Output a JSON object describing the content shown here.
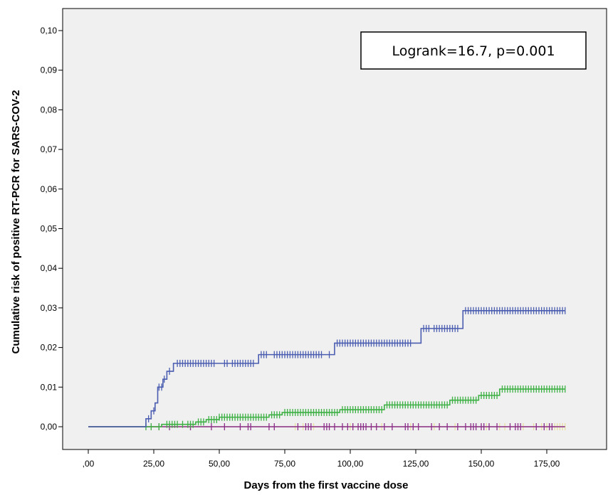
{
  "chart_data": {
    "type": "line",
    "subtype": "kaplan-meier-cumulative-risk",
    "xlabel": "Days from the first vaccine dose",
    "ylabel": "Cumulative risk of positive  RT-PCR for  SARS-COV-2",
    "xlim": [
      0,
      182
    ],
    "ylim": [
      0,
      0.1
    ],
    "x_ticks": [
      0,
      25,
      50,
      75,
      100,
      125,
      150,
      175
    ],
    "x_tick_labels": [
      ",00",
      "25,00",
      "50,00",
      "75,00",
      "100,00",
      "125,00",
      "150,00",
      "175,00"
    ],
    "y_ticks": [
      0,
      0.01,
      0.02,
      0.03,
      0.04,
      0.05,
      0.06,
      0.07,
      0.08,
      0.09,
      0.1
    ],
    "y_tick_labels": [
      "0,00",
      "0,01",
      "0,02",
      "0,03",
      "0,04",
      "0,05",
      "0,06",
      "0,07",
      "0,08",
      "0,09",
      "0,10"
    ],
    "grid": false,
    "background_color": "#f0f0f0",
    "annotation": "Logrank=16.7,  p=0.001",
    "annotation_position": "top-right",
    "series": [
      {
        "color": "#4a5db0",
        "steps": [
          [
            0,
            0
          ],
          [
            22,
            0.002
          ],
          [
            24,
            0.004
          ],
          [
            25.5,
            0.006
          ],
          [
            26.5,
            0.01
          ],
          [
            28.5,
            0.012
          ],
          [
            30,
            0.014
          ],
          [
            32.5,
            0.016
          ],
          [
            65,
            0.0182
          ],
          [
            94,
            0.0211
          ],
          [
            127,
            0.0248
          ],
          [
            143,
            0.0293
          ],
          [
            182,
            0.0293
          ]
        ],
        "censored": [
          23,
          25,
          27,
          28,
          29,
          31,
          34,
          35,
          36,
          37,
          38,
          39,
          40,
          41,
          42,
          43,
          44,
          45,
          46,
          47,
          48,
          52,
          53,
          55,
          56,
          57,
          58,
          59,
          60,
          61,
          62,
          63,
          66,
          67,
          68,
          71,
          72,
          73,
          74,
          75,
          76,
          77,
          78,
          79,
          80,
          81,
          82,
          83,
          84,
          85,
          86,
          87,
          88,
          89,
          92,
          95,
          96,
          97,
          98,
          99,
          100,
          101,
          102,
          103,
          104,
          105,
          106,
          107,
          108,
          109,
          110,
          111,
          112,
          113,
          114,
          115,
          116,
          117,
          118,
          119,
          120,
          121,
          122,
          123,
          128,
          129,
          130,
          132,
          133,
          134,
          135,
          136,
          137,
          138,
          139,
          140,
          141,
          144,
          145,
          146,
          147,
          148,
          149,
          150,
          151,
          152,
          153,
          154,
          155,
          156,
          157,
          158,
          159,
          160,
          161,
          162,
          163,
          164,
          165,
          166,
          167,
          168,
          169,
          170,
          171,
          172,
          173,
          174,
          175,
          176,
          177,
          178,
          179,
          180,
          181,
          182
        ]
      },
      {
        "color": "#3cb043",
        "steps": [
          [
            0,
            0
          ],
          [
            22,
            0
          ],
          [
            28,
            0.0006
          ],
          [
            41,
            0.0012
          ],
          [
            45,
            0.0018
          ],
          [
            50,
            0.0024
          ],
          [
            69,
            0.003
          ],
          [
            74,
            0.0036
          ],
          [
            96,
            0.0043
          ],
          [
            113,
            0.0055
          ],
          [
            138,
            0.0067
          ],
          [
            149,
            0.0079
          ],
          [
            157,
            0.0095
          ],
          [
            182,
            0.0095
          ]
        ],
        "censored": [
          22,
          24,
          27,
          30,
          31,
          32,
          33,
          34,
          36,
          38,
          39,
          40,
          42,
          43,
          44,
          46,
          47,
          48,
          49,
          50,
          51,
          52,
          53,
          54,
          55,
          56,
          57,
          58,
          59,
          60,
          61,
          62,
          63,
          64,
          65,
          66,
          67,
          68,
          70,
          71,
          72,
          73,
          75,
          76,
          77,
          78,
          79,
          80,
          81,
          82,
          83,
          84,
          85,
          86,
          87,
          88,
          89,
          90,
          91,
          92,
          93,
          94,
          95,
          97,
          98,
          99,
          100,
          101,
          102,
          103,
          104,
          105,
          106,
          107,
          108,
          109,
          110,
          111,
          112,
          114,
          115,
          116,
          117,
          118,
          119,
          120,
          121,
          122,
          123,
          124,
          125,
          126,
          127,
          128,
          129,
          130,
          131,
          132,
          133,
          134,
          135,
          136,
          137,
          139,
          140,
          141,
          142,
          143,
          144,
          145,
          146,
          147,
          148,
          150,
          151,
          152,
          153,
          154,
          155,
          156,
          158,
          159,
          160,
          161,
          162,
          163,
          164,
          165,
          166,
          167,
          168,
          169,
          170,
          171,
          172,
          173,
          174,
          175,
          176,
          177,
          178,
          179,
          180,
          181,
          182
        ]
      },
      {
        "color": "#8a2e8a",
        "steps": [
          [
            0,
            0
          ],
          [
            182,
            0
          ]
        ],
        "censored": [
          27,
          31,
          39,
          47,
          52,
          58,
          61,
          62,
          69,
          71,
          80,
          83,
          84,
          85,
          90,
          91,
          92,
          94,
          97,
          99,
          101,
          103,
          104,
          105,
          106,
          108,
          110,
          113,
          116,
          121,
          122,
          124,
          126,
          131,
          134,
          137,
          141,
          144,
          146,
          147,
          148,
          150,
          151,
          153,
          156,
          161,
          163,
          164,
          165,
          171,
          174,
          176,
          177
        ]
      },
      {
        "color": "#e8e0a0",
        "steps": [
          [
            0,
            0
          ],
          [
            182,
            0
          ]
        ],
        "censored": [
          79,
          82,
          86,
          100,
          110,
          112,
          123,
          132,
          140,
          152,
          157,
          159,
          166,
          170,
          173,
          175,
          178,
          179,
          180,
          181,
          182
        ]
      }
    ]
  }
}
